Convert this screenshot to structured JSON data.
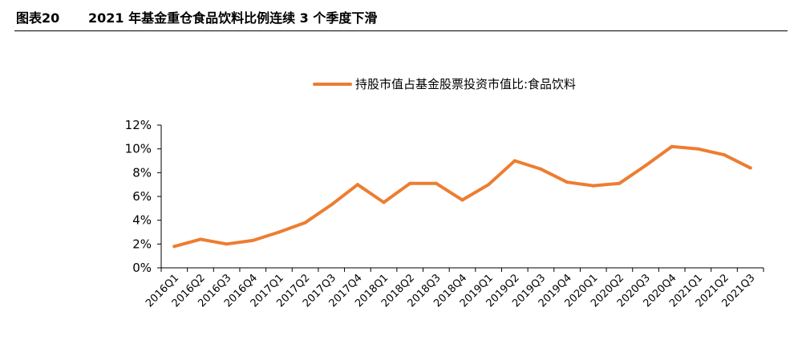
{
  "header": {
    "figure_number": "图表20",
    "title": "2021 年基金重仓食品饮料比例连续 3 个季度下滑"
  },
  "chart_data": {
    "type": "line",
    "categories": [
      "2016Q1",
      "2016Q2",
      "2016Q3",
      "2016Q4",
      "2017Q1",
      "2017Q2",
      "2017Q3",
      "2017Q4",
      "2018Q1",
      "2018Q2",
      "2018Q3",
      "2018Q4",
      "2019Q1",
      "2019Q2",
      "2019Q3",
      "2019Q4",
      "2020Q1",
      "2020Q2",
      "2020Q3",
      "2020Q4",
      "2021Q1",
      "2021Q2",
      "2021Q3"
    ],
    "series": [
      {
        "name": "持股市值占基金股票投资市值比:食品饮料",
        "color": "#ED7D31",
        "values": [
          1.8,
          2.4,
          2.0,
          2.3,
          3.0,
          3.8,
          5.3,
          7.0,
          5.5,
          7.1,
          7.1,
          5.7,
          7.0,
          9.0,
          8.3,
          7.2,
          6.9,
          7.1,
          8.6,
          10.2,
          10.0,
          9.5,
          8.4
        ]
      }
    ],
    "y_ticks": [
      "0%",
      "2%",
      "4%",
      "6%",
      "8%",
      "10%",
      "12%"
    ],
    "ylim": [
      0,
      12
    ],
    "legend_position": "top-center",
    "grid": false
  }
}
